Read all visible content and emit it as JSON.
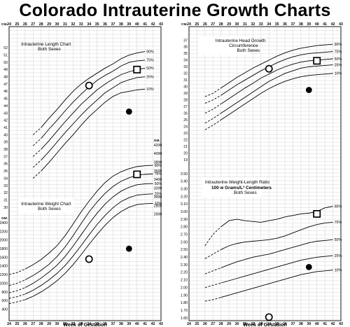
{
  "title": "Colorado Intrauterine Growth Charts",
  "chart_data": [
    {
      "type": "line",
      "title": "Intrauterine Length Chart",
      "subtitle": "Both Sexes",
      "unit_label": "CM.",
      "x": [
        24,
        25,
        26,
        27,
        28,
        29,
        30,
        31,
        32,
        33,
        34,
        35,
        36,
        37,
        38,
        39,
        40,
        41,
        42,
        43
      ],
      "xlim": [
        24,
        43
      ],
      "ylim": [
        30,
        53
      ],
      "y_ticks": [
        30,
        31,
        32,
        33,
        34,
        35,
        36,
        37,
        38,
        39,
        40,
        41,
        42,
        43,
        44,
        45,
        46,
        47,
        48,
        49,
        50,
        51,
        52
      ],
      "series": [
        {
          "name": "90%",
          "x": [
            27,
            28,
            29,
            30,
            31,
            32,
            33,
            34,
            35,
            36,
            37,
            38,
            39,
            40,
            41
          ],
          "y": [
            40,
            41,
            42.3,
            43.5,
            44.8,
            46,
            47,
            47.8,
            48.5,
            49.2,
            49.8,
            50.5,
            51,
            51.3,
            51.5
          ]
        },
        {
          "name": "75%",
          "x": [
            27,
            28,
            29,
            30,
            31,
            32,
            33,
            34,
            35,
            36,
            37,
            38,
            39,
            40,
            41
          ],
          "y": [
            38.5,
            39.5,
            40.8,
            42,
            43.3,
            44.5,
            45.6,
            46.6,
            47.5,
            48.2,
            48.8,
            49.5,
            50,
            50.2,
            50.3
          ]
        },
        {
          "name": "50%",
          "x": [
            27,
            28,
            29,
            30,
            31,
            32,
            33,
            34,
            35,
            36,
            37,
            38,
            39,
            40,
            41
          ],
          "y": [
            37,
            38,
            39.2,
            40.5,
            41.8,
            43,
            44.2,
            45.2,
            46.2,
            47,
            47.7,
            48.3,
            48.7,
            49,
            49.2
          ]
        },
        {
          "name": "25%",
          "x": [
            27,
            28,
            29,
            30,
            31,
            32,
            33,
            34,
            35,
            36,
            37,
            38,
            39,
            40,
            41
          ],
          "y": [
            35.5,
            36.5,
            37.7,
            39,
            40.3,
            41.5,
            42.7,
            43.8,
            44.8,
            45.8,
            46.5,
            47.2,
            47.6,
            47.9,
            48
          ]
        },
        {
          "name": "10%",
          "x": [
            27,
            28,
            29,
            30,
            31,
            32,
            33,
            34,
            35,
            36,
            37,
            38,
            39,
            40,
            41
          ],
          "y": [
            34,
            35,
            36.2,
            37.5,
            38.8,
            40,
            41.3,
            42.5,
            43.5,
            44.5,
            45.3,
            45.8,
            46,
            46.2,
            46.3
          ]
        }
      ],
      "markers": [
        {
          "shape": "open circle",
          "x": 34,
          "y": 46.8
        },
        {
          "shape": "filled circle",
          "x": 39,
          "y": 43.2
        },
        {
          "shape": "open square",
          "x": 40,
          "y": 49
        }
      ]
    },
    {
      "type": "line",
      "title": "Intrauterine Weight Chart",
      "subtitle": "Both Sexes",
      "unit_label": "GM.",
      "x": [
        24,
        25,
        26,
        27,
        28,
        29,
        30,
        31,
        32,
        33,
        34,
        35,
        36,
        37,
        38,
        39,
        40,
        41,
        42,
        43
      ],
      "xlim": [
        24,
        43
      ],
      "ylim": [
        200,
        4200
      ],
      "y_ticks_left": [
        400,
        600,
        800,
        1000,
        1200,
        1400,
        1600,
        1800,
        2000,
        2200,
        2400
      ],
      "y_ticks_right": [
        2600,
        2800,
        3000,
        3200,
        3400,
        3600,
        3800,
        4000,
        4200
      ],
      "series": [
        {
          "name": "90%",
          "x": [
            24,
            25,
            26,
            27,
            28,
            29,
            30,
            31,
            32,
            33,
            34,
            35,
            36,
            37,
            38,
            39,
            40,
            41,
            42
          ],
          "y": [
            1200,
            1250,
            1330,
            1430,
            1550,
            1700,
            1870,
            2100,
            2370,
            2650,
            2900,
            3130,
            3330,
            3480,
            3580,
            3650,
            3700,
            3720,
            3730
          ]
        },
        {
          "name": "75%",
          "x": [
            24,
            25,
            26,
            27,
            28,
            29,
            30,
            31,
            32,
            33,
            34,
            35,
            36,
            37,
            38,
            39,
            40,
            41,
            42
          ],
          "y": [
            950,
            1000,
            1080,
            1180,
            1300,
            1440,
            1620,
            1840,
            2100,
            2380,
            2650,
            2880,
            3080,
            3240,
            3360,
            3440,
            3500,
            3520,
            3530
          ]
        },
        {
          "name": "50%",
          "x": [
            24,
            25,
            26,
            27,
            28,
            29,
            30,
            31,
            32,
            33,
            34,
            35,
            36,
            37,
            38,
            39,
            40,
            41,
            42
          ],
          "y": [
            780,
            830,
            900,
            1000,
            1120,
            1260,
            1420,
            1620,
            1860,
            2120,
            2380,
            2620,
            2830,
            3000,
            3130,
            3220,
            3280,
            3300,
            3310
          ]
        },
        {
          "name": "25%",
          "x": [
            24,
            25,
            26,
            27,
            28,
            29,
            30,
            31,
            32,
            33,
            34,
            35,
            36,
            37,
            38,
            39,
            40,
            41,
            42
          ],
          "y": [
            650,
            690,
            750,
            840,
            950,
            1080,
            1230,
            1410,
            1630,
            1870,
            2120,
            2360,
            2570,
            2750,
            2890,
            2980,
            3040,
            3060,
            3070
          ]
        },
        {
          "name": "10%",
          "x": [
            24,
            25,
            26,
            27,
            28,
            29,
            30,
            31,
            32,
            33,
            34,
            35,
            36,
            37,
            38,
            39,
            40,
            41,
            42
          ],
          "y": [
            530,
            570,
            620,
            700,
            800,
            920,
            1060,
            1230,
            1430,
            1660,
            1900,
            2130,
            2340,
            2520,
            2660,
            2760,
            2820,
            2840,
            2850
          ]
        }
      ],
      "markers": [
        {
          "shape": "open circle",
          "x": 34,
          "y": 1560
        },
        {
          "shape": "filled circle",
          "x": 39,
          "y": 1800
        },
        {
          "shape": "open square",
          "x": 40,
          "y": 3520
        }
      ]
    },
    {
      "type": "line",
      "title": "Intrauterine Head Growth Circumference",
      "subtitle": "Both Sexes",
      "unit_label": "CM.",
      "x": [
        24,
        25,
        26,
        27,
        28,
        29,
        30,
        31,
        32,
        33,
        34,
        35,
        36,
        37,
        38,
        39,
        40,
        41,
        42,
        43
      ],
      "xlim": [
        24,
        43
      ],
      "ylim": [
        19,
        38
      ],
      "y_ticks": [
        19,
        20,
        21,
        22,
        23,
        24,
        25,
        26,
        27,
        28,
        29,
        30,
        31,
        32,
        33,
        34,
        35,
        36,
        37
      ],
      "series": [
        {
          "name": "90%",
          "x": [
            26,
            27,
            28,
            29,
            30,
            31,
            32,
            33,
            34,
            35,
            36,
            37,
            38,
            39,
            40,
            41,
            42
          ],
          "y": [
            28.5,
            29,
            29.8,
            30.6,
            31.4,
            32.1,
            32.8,
            33.4,
            34,
            34.6,
            35.1,
            35.5,
            35.8,
            36,
            36.2,
            36.3,
            36.4
          ]
        },
        {
          "name": "75%",
          "x": [
            26,
            27,
            28,
            29,
            30,
            31,
            32,
            33,
            34,
            35,
            36,
            37,
            38,
            39,
            40,
            41,
            42
          ],
          "y": [
            27.5,
            28,
            28.7,
            29.5,
            30.3,
            31,
            31.7,
            32.4,
            33,
            33.6,
            34.1,
            34.5,
            34.8,
            35,
            35.1,
            35.2,
            35.3
          ]
        },
        {
          "name": "50%",
          "x": [
            26,
            27,
            28,
            29,
            30,
            31,
            32,
            33,
            34,
            35,
            36,
            37,
            38,
            39,
            40,
            41,
            42
          ],
          "y": [
            26,
            26.6,
            27.4,
            28.2,
            29,
            29.8,
            30.5,
            31.3,
            31.9,
            32.5,
            33,
            33.4,
            33.7,
            33.9,
            34,
            34.1,
            34.2
          ]
        },
        {
          "name": "25%",
          "x": [
            26,
            27,
            28,
            29,
            30,
            31,
            32,
            33,
            34,
            35,
            36,
            37,
            38,
            39,
            40,
            41,
            42
          ],
          "y": [
            24.5,
            25.2,
            26,
            26.8,
            27.6,
            28.4,
            29.2,
            30,
            30.8,
            31.4,
            32,
            32.4,
            32.8,
            33,
            33.1,
            33.2,
            33.3
          ]
        },
        {
          "name": "10%",
          "x": [
            26,
            27,
            28,
            29,
            30,
            31,
            32,
            33,
            34,
            35,
            36,
            37,
            38,
            39,
            40,
            41,
            42
          ],
          "y": [
            23.5,
            24.2,
            25,
            25.8,
            26.6,
            27.4,
            28.2,
            29,
            29.7,
            30.3,
            30.8,
            31.2,
            31.5,
            31.7,
            31.8,
            31.9,
            32
          ]
        }
      ],
      "markers": [
        {
          "shape": "open circle",
          "x": 34,
          "y": 32.7
        },
        {
          "shape": "filled circle",
          "x": 39,
          "y": 29.5
        },
        {
          "shape": "open square",
          "x": 40,
          "y": 33.9
        }
      ]
    },
    {
      "type": "line",
      "title": "Intrauterine Weight-Length Ratio",
      "subtitle": "100 w Grams/L³ Centimeters",
      "subtitle2": "Both Sexes",
      "x": [
        24,
        25,
        26,
        27,
        28,
        29,
        30,
        31,
        32,
        33,
        34,
        35,
        36,
        37,
        38,
        39,
        40,
        41,
        42,
        43
      ],
      "xlim": [
        24,
        43
      ],
      "ylim": [
        1.6,
        3.5
      ],
      "y_ticks": [
        1.6,
        1.7,
        1.8,
        1.9,
        2.0,
        2.1,
        2.2,
        2.3,
        2.4,
        2.5,
        2.6,
        2.7,
        2.8,
        2.9,
        3.0,
        3.1,
        3.2,
        3.3,
        3.4,
        3.5
      ],
      "series": [
        {
          "name": "90%",
          "x": [
            26,
            27,
            28,
            29,
            30,
            31,
            32,
            33,
            34,
            35,
            36,
            37,
            38,
            39,
            40,
            41,
            42
          ],
          "y": [
            2.55,
            2.7,
            2.8,
            2.88,
            2.9,
            2.88,
            2.87,
            2.86,
            2.88,
            2.9,
            2.93,
            2.95,
            2.97,
            2.98,
            3.0,
            3.05,
            3.07
          ]
        },
        {
          "name": "75%",
          "x": [
            26,
            27,
            28,
            29,
            30,
            31,
            32,
            33,
            34,
            35,
            36,
            37,
            38,
            39,
            40,
            41,
            42
          ],
          "y": [
            2.38,
            2.44,
            2.5,
            2.55,
            2.58,
            2.6,
            2.61,
            2.62,
            2.63,
            2.65,
            2.68,
            2.72,
            2.76,
            2.8,
            2.83,
            2.85,
            2.86
          ]
        },
        {
          "name": "50%",
          "x": [
            26,
            27,
            28,
            29,
            30,
            31,
            32,
            33,
            34,
            35,
            36,
            37,
            38,
            39,
            40,
            41,
            42
          ],
          "y": [
            2.18,
            2.22,
            2.26,
            2.3,
            2.34,
            2.37,
            2.4,
            2.42,
            2.44,
            2.47,
            2.5,
            2.53,
            2.56,
            2.59,
            2.61,
            2.62,
            2.63
          ]
        },
        {
          "name": "25%",
          "x": [
            26,
            27,
            28,
            29,
            30,
            31,
            32,
            33,
            34,
            35,
            36,
            37,
            38,
            39,
            40,
            41,
            42
          ],
          "y": [
            2.0,
            2.03,
            2.06,
            2.09,
            2.12,
            2.15,
            2.18,
            2.21,
            2.24,
            2.27,
            2.3,
            2.33,
            2.36,
            2.38,
            2.4,
            2.41,
            2.42
          ]
        },
        {
          "name": "10%",
          "x": [
            26,
            27,
            28,
            29,
            30,
            31,
            32,
            33,
            34,
            35,
            36,
            37,
            38,
            39,
            40,
            41,
            42
          ],
          "y": [
            1.82,
            1.84,
            1.87,
            1.9,
            1.93,
            1.96,
            1.99,
            2.02,
            2.05,
            2.08,
            2.11,
            2.14,
            2.17,
            2.19,
            2.21,
            2.22,
            2.23
          ]
        }
      ],
      "markers": [
        {
          "shape": "open circle",
          "x": 34,
          "y": 1.61
        },
        {
          "shape": "filled circle",
          "x": 39,
          "y": 2.27
        },
        {
          "shape": "open square",
          "x": 40,
          "y": 2.97
        }
      ]
    }
  ],
  "x_axis_label": "Week of Gestation"
}
